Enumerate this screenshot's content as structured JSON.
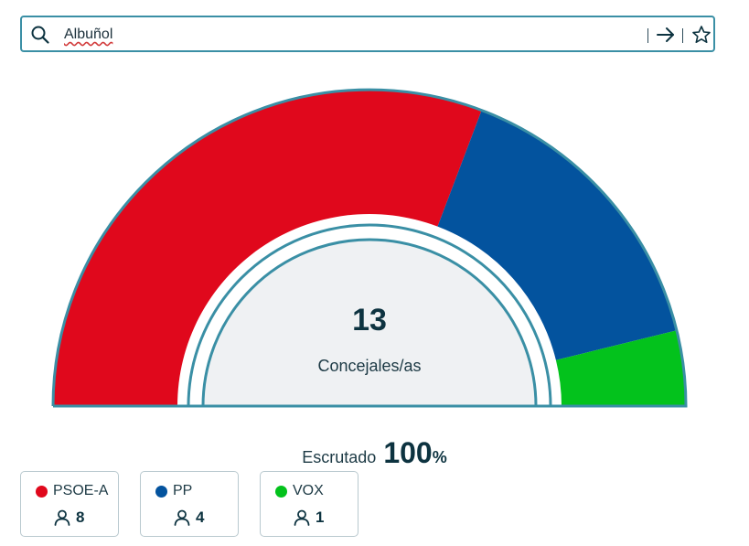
{
  "search": {
    "value": "Albuñol",
    "icons": {
      "search": "search-icon",
      "go": "arrow-right-icon",
      "favorite": "star-icon"
    }
  },
  "colors": {
    "border": "#3a8fa5",
    "center_fill": "#eff1f3",
    "text_dark": "#0d3340"
  },
  "chart_data": {
    "type": "pie",
    "subtype": "semicircle-parliament",
    "total_seats": "13",
    "total_label": "Concejales/as",
    "series": [
      {
        "name": "PSOE-A",
        "value": 8,
        "color": "#e0081c"
      },
      {
        "name": "PP",
        "value": 4,
        "color": "#03539e"
      },
      {
        "name": "VOX",
        "value": 1,
        "color": "#03c21c"
      }
    ]
  },
  "scrutiny": {
    "label": "Escrutado",
    "value": "100",
    "unit": "%"
  },
  "parties": [
    {
      "name": "PSOE-A",
      "seats": "8",
      "color": "#e0081c"
    },
    {
      "name": "PP",
      "seats": "4",
      "color": "#03539e"
    },
    {
      "name": "VOX",
      "seats": "1",
      "color": "#03c21c"
    }
  ]
}
